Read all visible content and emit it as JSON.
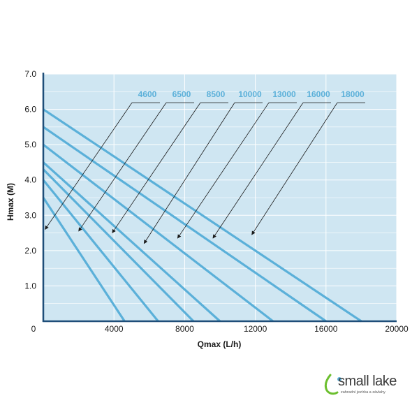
{
  "chart_data": {
    "type": "line",
    "title": "",
    "xlabel": "Qmax (L/h)",
    "ylabel": "Hmax (M)",
    "xlim": [
      0,
      20000
    ],
    "ylim": [
      0,
      7.0
    ],
    "x_ticks": [
      "0",
      "4000",
      "8000",
      "12000",
      "16000",
      "20000"
    ],
    "x_tick_values": [
      0,
      4000,
      8000,
      12000,
      16000,
      20000
    ],
    "y_ticks": [
      "1.0",
      "2.0",
      "3.0",
      "4.0",
      "5.0",
      "6.0",
      "7.0"
    ],
    "y_tick_values": [
      1,
      2,
      3,
      4,
      5,
      6,
      7
    ],
    "grid": true,
    "series": [
      {
        "name": "4600",
        "points": [
          [
            0,
            3.5
          ],
          [
            4600,
            0
          ]
        ]
      },
      {
        "name": "6500",
        "points": [
          [
            0,
            4.0
          ],
          [
            6500,
            0
          ]
        ]
      },
      {
        "name": "8500",
        "points": [
          [
            0,
            4.3
          ],
          [
            8500,
            0
          ]
        ]
      },
      {
        "name": "10000",
        "points": [
          [
            0,
            4.5
          ],
          [
            10000,
            0
          ]
        ]
      },
      {
        "name": "13000",
        "points": [
          [
            0,
            5.0
          ],
          [
            13000,
            0
          ]
        ]
      },
      {
        "name": "16000",
        "points": [
          [
            0,
            5.5
          ],
          [
            16000,
            0
          ]
        ]
      },
      {
        "name": "18000",
        "points": [
          [
            0,
            6.0
          ],
          [
            18000,
            0
          ]
        ]
      }
    ],
    "annotation_targets": [
      [
        100,
        2.6
      ],
      [
        2000,
        2.55
      ],
      [
        3900,
        2.5
      ],
      [
        5700,
        2.2
      ],
      [
        7600,
        2.35
      ],
      [
        9600,
        2.35
      ],
      [
        11800,
        2.45
      ]
    ]
  },
  "colors": {
    "plot_background": "#cfe6f2",
    "grid": "#ffffff",
    "series_line": "#5bb0d9",
    "axis": "#1f4e79",
    "text": "#1a1a1a",
    "logo_accent": "#6cbf2f"
  },
  "logo": {
    "name": "small lake",
    "tagline": "zahradní jezírka a závlahy"
  }
}
